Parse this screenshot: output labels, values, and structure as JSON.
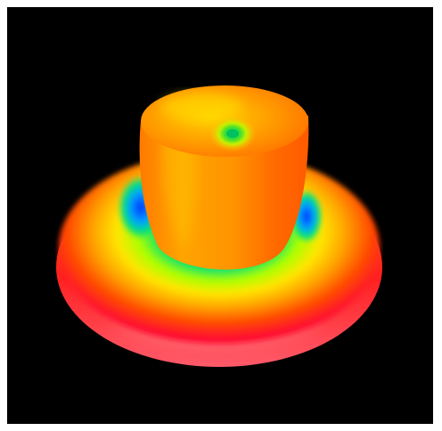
{
  "figure": {
    "background_color": "#000000",
    "frame_color": "#ffffff",
    "colormap": [
      "#ff0020",
      "#ff4a00",
      "#ff9a00",
      "#ffe000",
      "#7cff00",
      "#00e060",
      "#0070ff",
      "#3000c0"
    ],
    "icon": "3d-surface-plot-icon"
  }
}
